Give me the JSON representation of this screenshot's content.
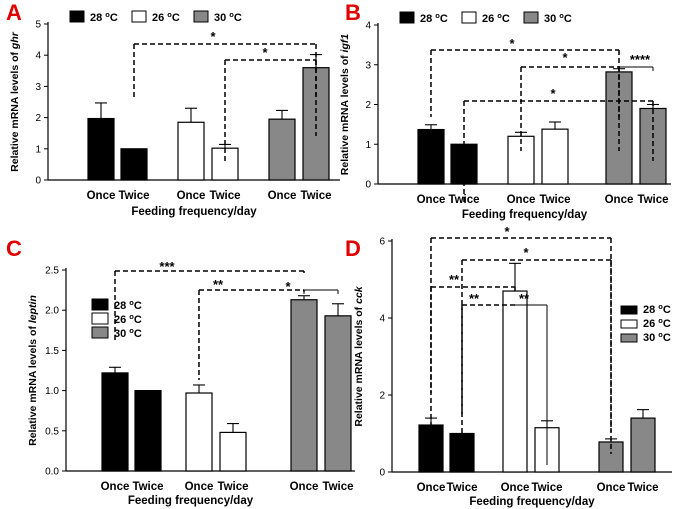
{
  "chart_data": [
    {
      "type": "bar",
      "panel_label": "A",
      "title": "",
      "xlabel": "Feeding frequency/day",
      "ylabel_prefix": "Relative mRNA levels of ",
      "gene": "ghr",
      "ylim": [
        0,
        5
      ],
      "yticks": [
        "0",
        "1",
        "2",
        "3",
        "4",
        "5"
      ],
      "legend": {
        "position": "top",
        "entries": [
          {
            "temp": "28",
            "sup": "o",
            "unit": "C",
            "fill": "#000000"
          },
          {
            "temp": "26",
            "sup": "o",
            "unit": "C",
            "fill": "#ffffff"
          },
          {
            "temp": "30",
            "sup": "o",
            "unit": "C",
            "fill": "#888888"
          }
        ]
      },
      "categories": [
        "Once",
        "Twice",
        "Once",
        "Twice",
        "Once",
        "Twice"
      ],
      "bars": [
        {
          "group": "28 oC",
          "category": "Once",
          "value": 1.97,
          "error": 0.5,
          "fill": "#000000"
        },
        {
          "group": "28 oC",
          "category": "Twice",
          "value": 1.0,
          "error": 0.0,
          "fill": "#000000"
        },
        {
          "group": "26 oC",
          "category": "Once",
          "value": 1.85,
          "error": 0.45,
          "fill": "#ffffff"
        },
        {
          "group": "26 oC",
          "category": "Twice",
          "value": 1.02,
          "error": 0.12,
          "fill": "#ffffff"
        },
        {
          "group": "30 oC",
          "category": "Once",
          "value": 1.95,
          "error": 0.28,
          "fill": "#888888"
        },
        {
          "group": "30 oC",
          "category": "Twice",
          "value": 3.6,
          "error": 0.42,
          "fill": "#888888"
        }
      ],
      "significance": [
        {
          "from_bar": 1,
          "to_bar": 5,
          "label": "*"
        },
        {
          "from_bar": 3,
          "to_bar": 5,
          "label": "*"
        }
      ]
    },
    {
      "type": "bar",
      "panel_label": "B",
      "title": "",
      "xlabel": "Feeding frequency/day",
      "ylabel_prefix": "Relative mRNA levels of ",
      "gene": "igf1",
      "ylim": [
        0,
        4
      ],
      "yticks": [
        "0",
        "1",
        "2",
        "3",
        "4"
      ],
      "legend": {
        "position": "top",
        "entries": [
          {
            "temp": "28",
            "sup": "o",
            "unit": "C",
            "fill": "#000000"
          },
          {
            "temp": "26",
            "sup": "o",
            "unit": "C",
            "fill": "#ffffff"
          },
          {
            "temp": "30",
            "sup": "o",
            "unit": "C",
            "fill": "#888888"
          }
        ]
      },
      "categories": [
        "Once",
        "Twice",
        "Once",
        "Twice",
        "Once",
        "Twice"
      ],
      "bars": [
        {
          "group": "28 oC",
          "category": "Once",
          "value": 1.37,
          "error": 0.12,
          "fill": "#000000"
        },
        {
          "group": "28 oC",
          "category": "Twice",
          "value": 1.0,
          "error": 0.0,
          "fill": "#000000"
        },
        {
          "group": "26 oC",
          "category": "Once",
          "value": 1.2,
          "error": 0.1,
          "fill": "#ffffff"
        },
        {
          "group": "26 oC",
          "category": "Twice",
          "value": 1.38,
          "error": 0.18,
          "fill": "#ffffff"
        },
        {
          "group": "30 oC",
          "category": "Once",
          "value": 2.82,
          "error": 0.08,
          "fill": "#888888"
        },
        {
          "group": "30 oC",
          "category": "Twice",
          "value": 1.9,
          "error": 0.1,
          "fill": "#888888"
        }
      ],
      "significance": [
        {
          "from_bar": 0,
          "to_bar": 4,
          "label": "*"
        },
        {
          "from_bar": 2,
          "to_bar": 4,
          "label": "*"
        },
        {
          "from_bar": 4,
          "to_bar": 5,
          "label": "****"
        },
        {
          "from_bar": 1,
          "to_bar": 5,
          "label": "*"
        }
      ]
    },
    {
      "type": "bar",
      "panel_label": "C",
      "title": "",
      "xlabel": "Feeding frequency/day",
      "ylabel_prefix": "Relative mRNA levels of ",
      "gene": "leptin",
      "ylim": [
        0,
        2.5
      ],
      "yticks": [
        "0.0",
        "0.5",
        "1.0",
        "1.5",
        "2.0",
        "2.5"
      ],
      "legend": {
        "position": "left",
        "entries": [
          {
            "temp": "28",
            "sup": "o",
            "unit": "C",
            "fill": "#000000"
          },
          {
            "temp": "26",
            "sup": "o",
            "unit": "C",
            "fill": "#ffffff"
          },
          {
            "temp": "30",
            "sup": "o",
            "unit": "C",
            "fill": "#888888"
          }
        ]
      },
      "categories": [
        "Once",
        "Twice",
        "Once",
        "Twice",
        "Once",
        "Twice"
      ],
      "bars": [
        {
          "group": "28 oC",
          "category": "Once",
          "value": 1.22,
          "error": 0.07,
          "fill": "#000000"
        },
        {
          "group": "28 oC",
          "category": "Twice",
          "value": 1.0,
          "error": 0.0,
          "fill": "#000000"
        },
        {
          "group": "26 oC",
          "category": "Once",
          "value": 0.97,
          "error": 0.1,
          "fill": "#ffffff"
        },
        {
          "group": "26 oC",
          "category": "Twice",
          "value": 0.48,
          "error": 0.11,
          "fill": "#ffffff"
        },
        {
          "group": "30 oC",
          "category": "Once",
          "value": 2.13,
          "error": 0.05,
          "fill": "#888888"
        },
        {
          "group": "30 oC",
          "category": "Twice",
          "value": 1.93,
          "error": 0.15,
          "fill": "#888888"
        }
      ],
      "significance": [
        {
          "from_bar": 0,
          "to_bar": 4,
          "label": "***"
        },
        {
          "from_bar": 2,
          "to_bar": 4,
          "label": "**"
        },
        {
          "from_bar": 4,
          "to_bar": 5,
          "label": "*"
        }
      ]
    },
    {
      "type": "bar",
      "panel_label": "D",
      "title": "",
      "xlabel": "Feeding frequency/day",
      "ylabel_prefix": "Relative mRNA levels of ",
      "gene": "cck",
      "ylim": [
        0,
        6
      ],
      "yticks": [
        "0",
        "2",
        "4",
        "6"
      ],
      "legend": {
        "position": "right",
        "entries": [
          {
            "temp": "28",
            "sup": "o",
            "unit": "C",
            "fill": "#000000"
          },
          {
            "temp": "26",
            "sup": "o",
            "unit": "C",
            "fill": "#ffffff"
          },
          {
            "temp": "30",
            "sup": "o",
            "unit": "C",
            "fill": "#888888"
          }
        ]
      },
      "categories": [
        "Once",
        "Twice",
        "Once",
        "Twice",
        "Once",
        "Twice"
      ],
      "bars": [
        {
          "group": "28 oC",
          "category": "Once",
          "value": 1.22,
          "error": 0.18,
          "fill": "#000000"
        },
        {
          "group": "28 oC",
          "category": "Twice",
          "value": 1.0,
          "error": 0.0,
          "fill": "#000000"
        },
        {
          "group": "26 oC",
          "category": "Once",
          "value": 4.7,
          "error": 0.72,
          "fill": "#ffffff"
        },
        {
          "group": "26 oC",
          "category": "Twice",
          "value": 1.15,
          "error": 0.18,
          "fill": "#ffffff"
        },
        {
          "group": "30 oC",
          "category": "Once",
          "value": 0.78,
          "error": 0.08,
          "fill": "#888888"
        },
        {
          "group": "30 oC",
          "category": "Twice",
          "value": 1.4,
          "error": 0.22,
          "fill": "#888888"
        }
      ],
      "significance": [
        {
          "from_bar": 0,
          "to_bar": 4,
          "label": "*"
        },
        {
          "from_bar": 1,
          "to_bar": 4,
          "label": "*"
        },
        {
          "from_bar": 0,
          "to_bar": 2,
          "label": "**"
        },
        {
          "from_bar": 1,
          "to_bar": 2,
          "label": "**"
        },
        {
          "from_bar": 2,
          "to_bar": 3,
          "label": "**"
        }
      ]
    }
  ]
}
